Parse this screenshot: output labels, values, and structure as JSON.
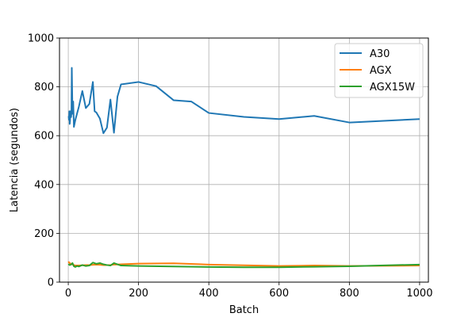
{
  "chart_data": {
    "type": "line",
    "title": "",
    "xlabel": "Batch",
    "ylabel": "Latencia (segundos)",
    "xlim": [
      -25,
      1025
    ],
    "ylim": [
      0,
      1000
    ],
    "xticks": [
      0,
      200,
      400,
      600,
      800,
      1000
    ],
    "yticks": [
      0,
      200,
      400,
      600,
      800,
      1000
    ],
    "grid": true,
    "legend_position": "top-right",
    "series": [
      {
        "name": "A30",
        "color": "#1f77b4",
        "x": [
          1,
          2,
          3,
          4,
          5,
          6,
          7,
          8,
          9,
          10,
          12,
          14,
          16,
          20,
          30,
          40,
          50,
          60,
          70,
          75,
          80,
          90,
          100,
          110,
          120,
          130,
          140,
          150,
          200,
          250,
          300,
          350,
          400,
          500,
          600,
          700,
          800,
          1000
        ],
        "y": [
          680,
          665,
          700,
          648,
          662,
          700,
          690,
          676,
          693,
          878,
          690,
          740,
          636,
          664,
          718,
          783,
          713,
          730,
          820,
          700,
          695,
          670,
          610,
          633,
          748,
          612,
          760,
          810,
          820,
          803,
          745,
          740,
          693,
          677,
          668,
          681,
          654,
          668
        ]
      },
      {
        "name": "AGX",
        "color": "#ff7f0e",
        "x": [
          1,
          2,
          4,
          8,
          12,
          16,
          20,
          30,
          40,
          50,
          60,
          70,
          80,
          90,
          100,
          120,
          130,
          150,
          200,
          300,
          400,
          500,
          600,
          700,
          800,
          1000
        ],
        "y": [
          85,
          80,
          78,
          75,
          72,
          70,
          68,
          68,
          69,
          70,
          70,
          71,
          72,
          71,
          70,
          70,
          72,
          73,
          76,
          77,
          72,
          69,
          66,
          68,
          66,
          68
        ]
      },
      {
        "name": "AGX15W",
        "color": "#2ca02c",
        "x": [
          1,
          2,
          4,
          8,
          12,
          16,
          20,
          25,
          30,
          40,
          50,
          60,
          70,
          80,
          90,
          100,
          110,
          120,
          130,
          140,
          150,
          200,
          300,
          400,
          500,
          600,
          700,
          800,
          1000
        ],
        "y": [
          75,
          72,
          70,
          72,
          78,
          65,
          62,
          66,
          64,
          70,
          66,
          68,
          80,
          75,
          78,
          73,
          70,
          68,
          78,
          73,
          68,
          66,
          64,
          62,
          61,
          61,
          63,
          65,
          72
        ]
      }
    ]
  }
}
